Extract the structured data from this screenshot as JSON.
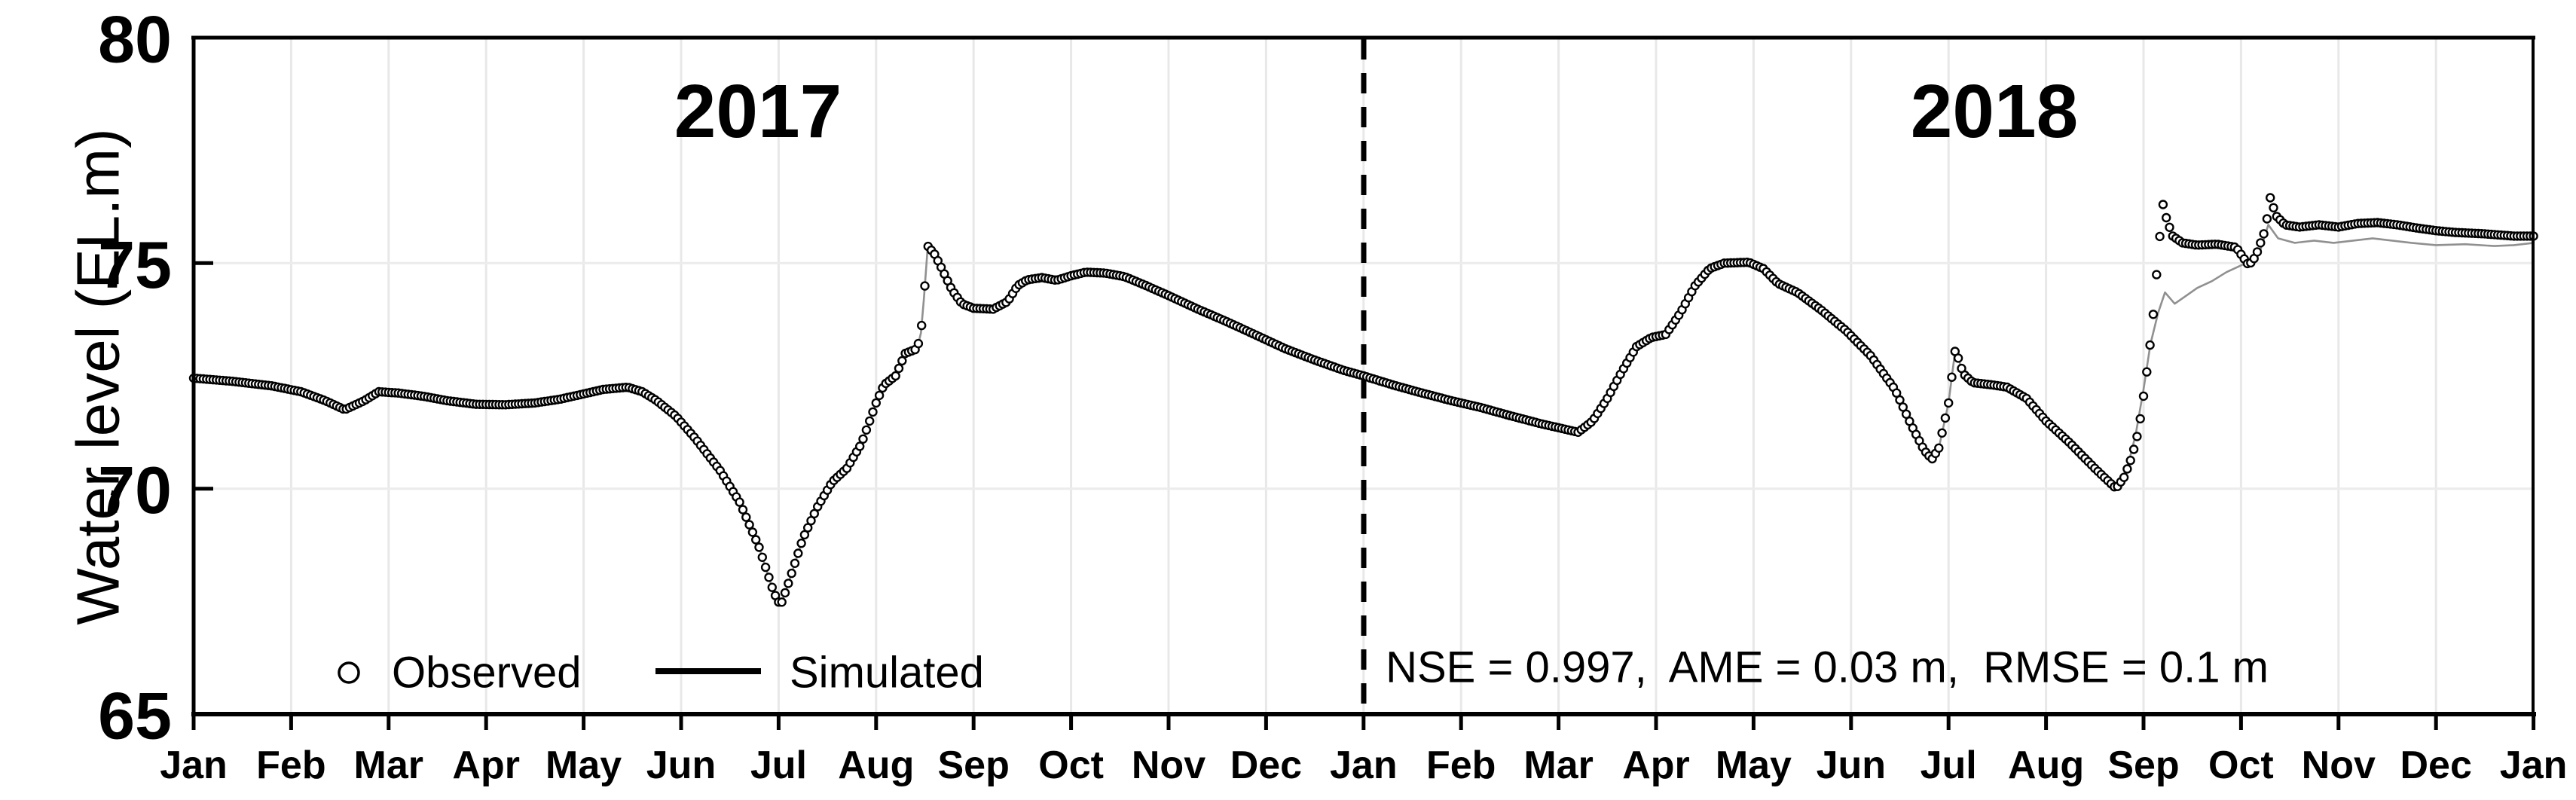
{
  "chart_data": {
    "type": "line",
    "title": "",
    "ylabel": "Water level (EL.m)",
    "xlabel": "",
    "ylim": [
      65,
      80
    ],
    "yticks": [
      80,
      75,
      70,
      65
    ],
    "x_tick_labels": [
      "Jan",
      "Feb",
      "Mar",
      "Apr",
      "May",
      "Jun",
      "Jul",
      "Aug",
      "Sep",
      "Oct",
      "Nov",
      "Dec",
      "Jan",
      "Feb",
      "Mar",
      "Apr",
      "May",
      "Jun",
      "Jul",
      "Aug",
      "Sep",
      "Oct",
      "Nov",
      "Dec",
      "Jan"
    ],
    "x_axis_note": "x measured in months; 0 = Jan 2017, 12 = Jan 2018, 24 = Jan 2019",
    "grid": {
      "vertical": "light gray line at every month",
      "horizontal_at": [
        70,
        75
      ]
    },
    "legend_position": "inside plot, bottom left",
    "legend": [
      {
        "label": "Observed",
        "marker": "open-circle"
      },
      {
        "label": "Simulated",
        "marker": "black-line"
      }
    ],
    "annotations": {
      "year_left": "2017",
      "year_right": "2018",
      "divider_month": 12,
      "divider_style": "vertical black dashed line at Jan 2018",
      "stats": "NSE = 0.997,  AME = 0.03 m,  RMSE = 0.1 m"
    },
    "observed_equals_simulated_before_x": 19.71,
    "series": [
      {
        "name": "Simulated",
        "render": "thin gray continuous line",
        "x": [
          0,
          0.4,
          0.8,
          1.1,
          1.35,
          1.55,
          1.75,
          1.9,
          2.1,
          2.35,
          2.6,
          2.9,
          3.2,
          3.5,
          3.75,
          4,
          4.2,
          4.45,
          4.6,
          4.75,
          4.95,
          5.15,
          5.4,
          5.6,
          5.8,
          5.95,
          6.02,
          6.1,
          6.25,
          6.4,
          6.55,
          6.7,
          6.85,
          7,
          7.08,
          7.2,
          7.3,
          7.42,
          7.46,
          7.49,
          7.53,
          7.6,
          7.68,
          7.78,
          7.88,
          8,
          8.2,
          8.35,
          8.45,
          8.55,
          8.7,
          8.85,
          9,
          9.15,
          9.35,
          9.55,
          9.75,
          10,
          10.3,
          10.6,
          10.9,
          11.2,
          11.5,
          11.8,
          12,
          12.3,
          12.6,
          12.9,
          13.2,
          13.5,
          13.8,
          14,
          14.2,
          14.35,
          14.5,
          14.65,
          14.8,
          14.95,
          15.1,
          15.25,
          15.4,
          15.55,
          15.7,
          15.95,
          16.1,
          16.25,
          16.45,
          16.7,
          16.95,
          17.2,
          17.45,
          17.62,
          17.75,
          17.83,
          17.9,
          18,
          18.07,
          18.15,
          18.25,
          18.45,
          18.6,
          18.8,
          19,
          19.25,
          19.5,
          19.71,
          19.78,
          19.85,
          19.92,
          20,
          20.07,
          20.15,
          20.22,
          20.32,
          20.42,
          20.55,
          20.7,
          20.85,
          21,
          21.1,
          21.2,
          21.28,
          21.38,
          21.55,
          21.75,
          21.95,
          22.15,
          22.35,
          22.55,
          22.75,
          23,
          23.3,
          23.6,
          23.8,
          24
        ],
        "y": [
          72.45,
          72.38,
          72.28,
          72.15,
          71.95,
          71.75,
          71.95,
          72.15,
          72.12,
          72.05,
          71.95,
          71.87,
          71.86,
          71.9,
          71.98,
          72.1,
          72.2,
          72.25,
          72.15,
          71.95,
          71.6,
          71.1,
          70.4,
          69.7,
          68.7,
          67.7,
          67.4,
          67.9,
          68.9,
          69.6,
          70.15,
          70.45,
          71,
          71.9,
          72.3,
          72.5,
          73,
          73.1,
          73.45,
          74.2,
          75.38,
          75.2,
          74.85,
          74.4,
          74.1,
          74,
          73.98,
          74.15,
          74.5,
          74.63,
          74.68,
          74.62,
          74.72,
          74.8,
          74.78,
          74.7,
          74.52,
          74.28,
          73.98,
          73.7,
          73.4,
          73.1,
          72.85,
          72.62,
          72.5,
          72.3,
          72.12,
          71.95,
          71.8,
          71.62,
          71.45,
          71.35,
          71.25,
          71.5,
          72,
          72.6,
          73.15,
          73.35,
          73.42,
          73.9,
          74.5,
          74.88,
          75,
          75.02,
          74.88,
          74.55,
          74.35,
          73.95,
          73.5,
          72.95,
          72.2,
          71.4,
          70.85,
          70.65,
          70.9,
          71.9,
          73.1,
          72.55,
          72.35,
          72.3,
          72.25,
          72,
          71.5,
          71,
          70.45,
          70.02,
          70.2,
          70.6,
          71.2,
          72.2,
          73.2,
          73.9,
          74.35,
          74.1,
          74.25,
          74.45,
          74.6,
          74.8,
          74.95,
          75.05,
          75.3,
          75.85,
          75.55,
          75.45,
          75.5,
          75.45,
          75.5,
          75.55,
          75.5,
          75.45,
          75.4,
          75.42,
          75.38,
          75.4,
          75.45
        ]
      },
      {
        "name": "Observed",
        "render": "daily open-circle markers; identical to Simulated series before x = 19.71, divergent tail listed here",
        "x": [
          19.71,
          19.8,
          19.88,
          19.95,
          20.02,
          20.09,
          20.16,
          20.2,
          20.24,
          20.3,
          20.4,
          20.55,
          20.75,
          20.95,
          21.08,
          21.15,
          21.25,
          21.3,
          21.36,
          21.45,
          21.6,
          21.8,
          22,
          22.2,
          22.4,
          22.6,
          22.8,
          23,
          23.2,
          23.5,
          23.8,
          24
        ],
        "y": [
          69.98,
          70.25,
          70.7,
          71.3,
          72.35,
          73.6,
          75.45,
          76.3,
          75.95,
          75.6,
          75.45,
          75.4,
          75.42,
          75.35,
          74.95,
          75.15,
          75.75,
          76.45,
          76.05,
          75.85,
          75.8,
          75.85,
          75.8,
          75.88,
          75.9,
          75.85,
          75.78,
          75.72,
          75.68,
          75.65,
          75.6,
          75.6
        ]
      }
    ]
  }
}
